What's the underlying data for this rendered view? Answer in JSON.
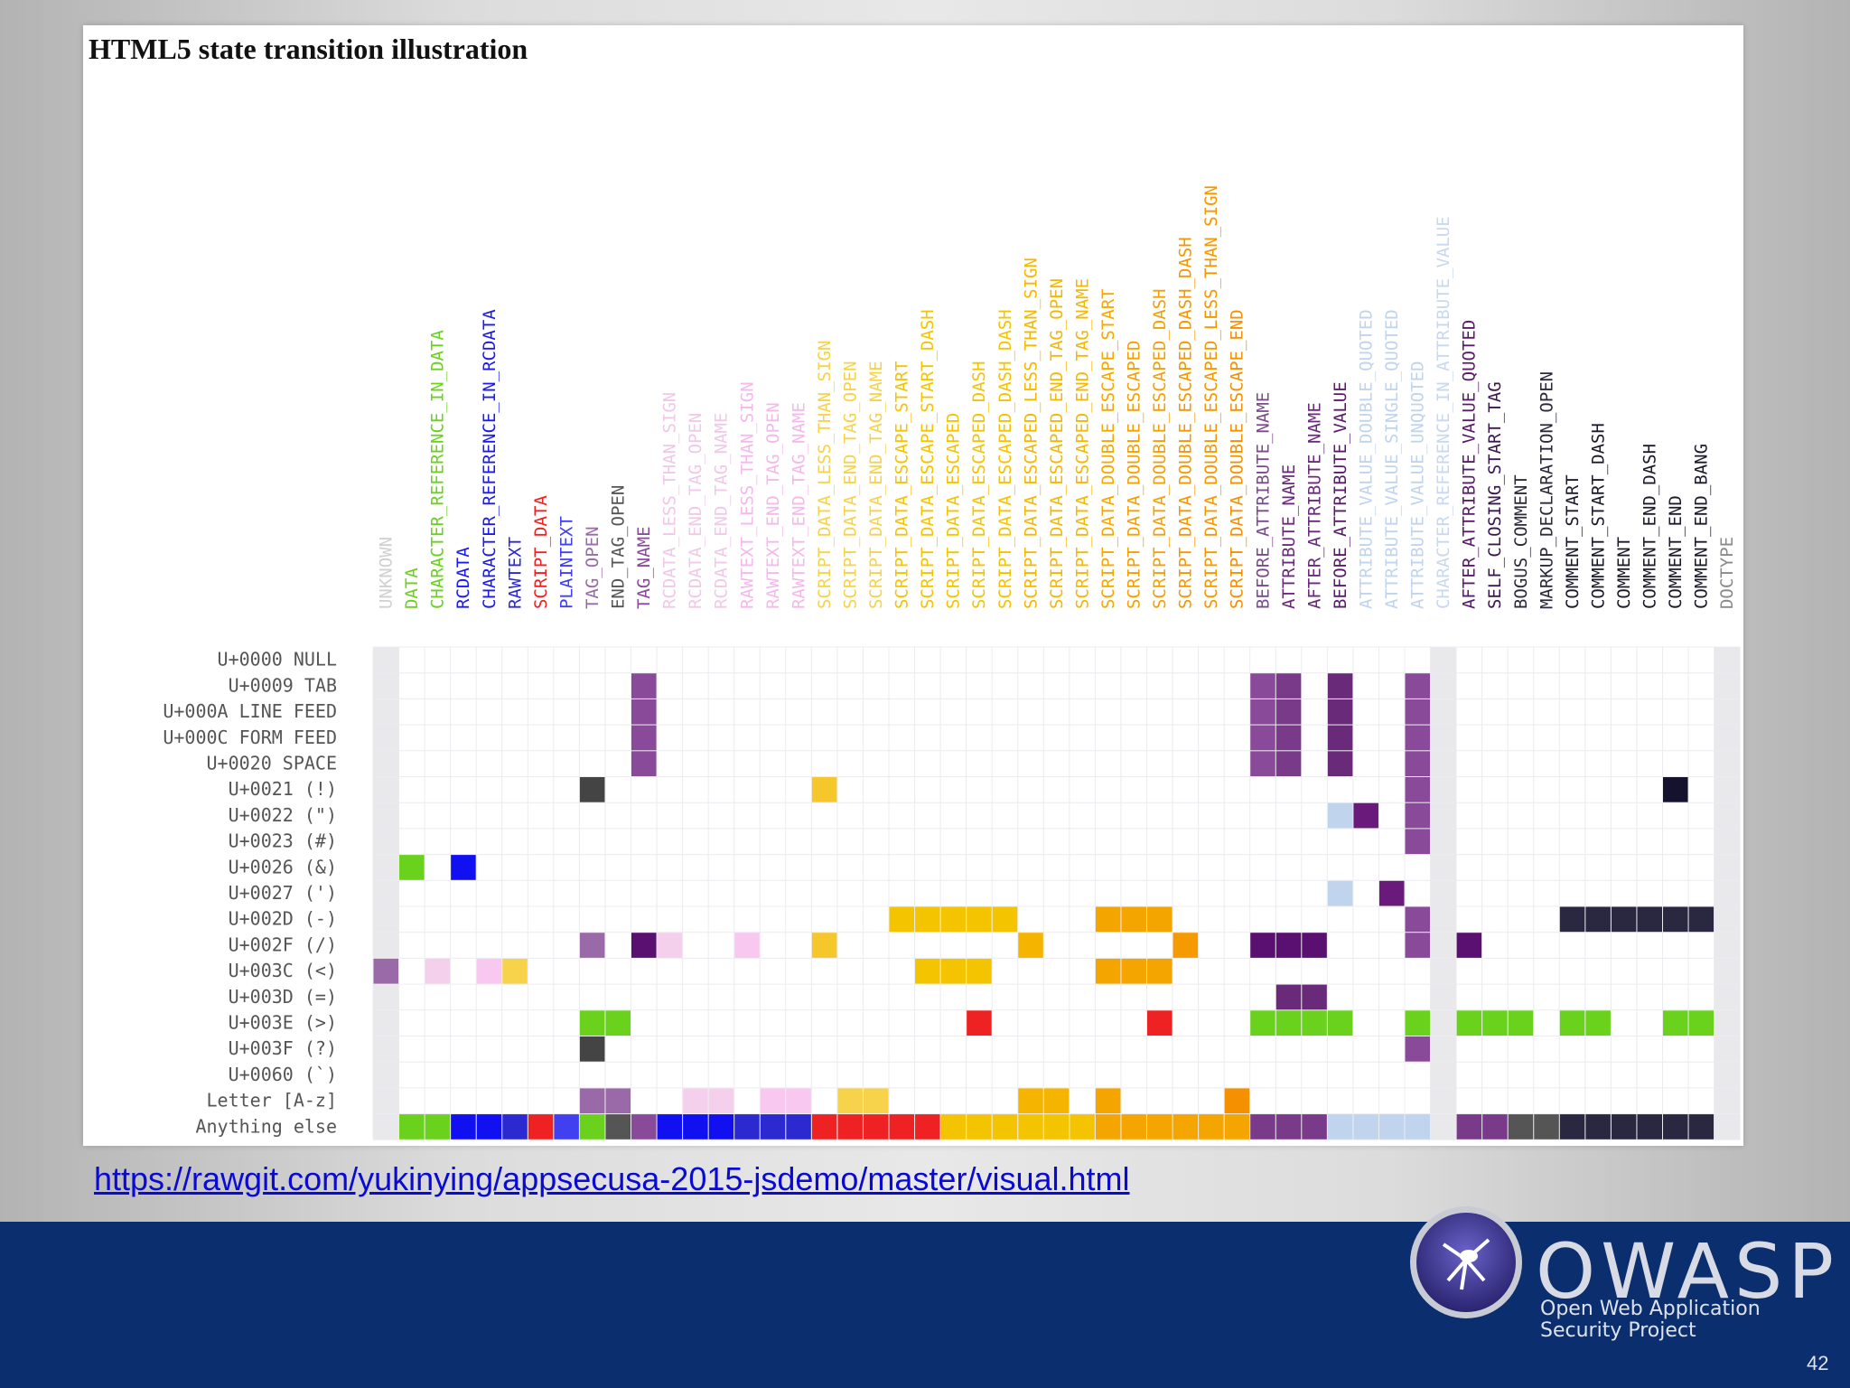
{
  "slide": {
    "title": "HTML5 state transition illustration",
    "url": "https://rawgit.com/yukinying/appsecusa-2015-jsdemo/master/visual.html",
    "logo_name": "OWASP",
    "logo_tagline_1": "Open Web Application",
    "logo_tagline_2": "Security Project",
    "page_number": "42",
    "colors": {
      "footer": "#0b2e6e",
      "link": "#0a0ad6"
    }
  },
  "chart_data": {
    "type": "heatmap",
    "title": "HTML5 state transition illustration",
    "columns": [
      {
        "name": "UNKNOWN",
        "color": "#d0d0d0"
      },
      {
        "name": "DATA",
        "color": "#6ad11d"
      },
      {
        "name": "CHARACTER_REFERENCE_IN_DATA",
        "color": "#6ad11d"
      },
      {
        "name": "RCDATA",
        "color": "#1a1af0"
      },
      {
        "name": "CHARACTER_REFERENCE_IN_RCDATA",
        "color": "#1a1af0"
      },
      {
        "name": "RAWTEXT",
        "color": "#2a2ad0"
      },
      {
        "name": "SCRIPT_DATA",
        "color": "#ee2222"
      },
      {
        "name": "PLAINTEXT",
        "color": "#4040f0"
      },
      {
        "name": "TAG_OPEN",
        "color": "#9a6aa8"
      },
      {
        "name": "END_TAG_OPEN",
        "color": "#555555"
      },
      {
        "name": "TAG_NAME",
        "color": "#8a4a9a"
      },
      {
        "name": "RCDATA_LESS_THAN_SIGN",
        "color": "#f0c8e8"
      },
      {
        "name": "RCDATA_END_TAG_OPEN",
        "color": "#f0c8e8"
      },
      {
        "name": "RCDATA_END_TAG_NAME",
        "color": "#f0c8e8"
      },
      {
        "name": "RAWTEXT_LESS_THAN_SIGN",
        "color": "#f4b8ec"
      },
      {
        "name": "RAWTEXT_END_TAG_OPEN",
        "color": "#f4b8ec"
      },
      {
        "name": "RAWTEXT_END_TAG_NAME",
        "color": "#f4b8ec"
      },
      {
        "name": "SCRIPT_DATA_LESS_THAN_SIGN",
        "color": "#f6d34a"
      },
      {
        "name": "SCRIPT_DATA_END_TAG_OPEN",
        "color": "#f6d34a"
      },
      {
        "name": "SCRIPT_DATA_END_TAG_NAME",
        "color": "#f6d34a"
      },
      {
        "name": "SCRIPT_DATA_ESCAPE_START",
        "color": "#f4c400"
      },
      {
        "name": "SCRIPT_DATA_ESCAPE_START_DASH",
        "color": "#f4c400"
      },
      {
        "name": "SCRIPT_DATA_ESCAPED",
        "color": "#f4c400"
      },
      {
        "name": "SCRIPT_DATA_ESCAPED_DASH",
        "color": "#f4c400"
      },
      {
        "name": "SCRIPT_DATA_ESCAPED_DASH_DASH",
        "color": "#f4c400"
      },
      {
        "name": "SCRIPT_DATA_ESCAPED_LESS_THAN_SIGN",
        "color": "#f5b800"
      },
      {
        "name": "SCRIPT_DATA_ESCAPED_END_TAG_OPEN",
        "color": "#f5b800"
      },
      {
        "name": "SCRIPT_DATA_ESCAPED_END_TAG_NAME",
        "color": "#f5b800"
      },
      {
        "name": "SCRIPT_DATA_DOUBLE_ESCAPE_START",
        "color": "#f5a800"
      },
      {
        "name": "SCRIPT_DATA_DOUBLE_ESCAPED",
        "color": "#f5a000"
      },
      {
        "name": "SCRIPT_DATA_DOUBLE_ESCAPED_DASH",
        "color": "#f5a000"
      },
      {
        "name": "SCRIPT_DATA_DOUBLE_ESCAPED_DASH_DASH",
        "color": "#f59800"
      },
      {
        "name": "SCRIPT_DATA_DOUBLE_ESCAPED_LESS_THAN_SIGN",
        "color": "#f59800"
      },
      {
        "name": "SCRIPT_DATA_DOUBLE_ESCAPE_END",
        "color": "#f59000"
      },
      {
        "name": "BEFORE_ATTRIBUTE_NAME",
        "color": "#7a4a8a"
      },
      {
        "name": "ATTRIBUTE_NAME",
        "color": "#6a2a7a"
      },
      {
        "name": "AFTER_ATTRIBUTE_NAME",
        "color": "#6a2a7a"
      },
      {
        "name": "BEFORE_ATTRIBUTE_VALUE",
        "color": "#5a1a6a"
      },
      {
        "name": "ATTRIBUTE_VALUE_DOUBLE_QUOTED",
        "color": "#c0d4ee"
      },
      {
        "name": "ATTRIBUTE_VALUE_SINGLE_QUOTED",
        "color": "#c0d4ee"
      },
      {
        "name": "ATTRIBUTE_VALUE_UNQUOTED",
        "color": "#c0d4ee"
      },
      {
        "name": "CHARACTER_REFERENCE_IN_ATTRIBUTE_VALUE",
        "color": "#c8d8f0"
      },
      {
        "name": "AFTER_ATTRIBUTE_VALUE_QUOTED",
        "color": "#5a1a6a"
      },
      {
        "name": "SELF_CLOSING_START_TAG",
        "color": "#3a1a4a"
      },
      {
        "name": "BOGUS_COMMENT",
        "color": "#2a2a3a"
      },
      {
        "name": "MARKUP_DECLARATION_OPEN",
        "color": "#2a2a3a"
      },
      {
        "name": "COMMENT_START",
        "color": "#1a1a2a"
      },
      {
        "name": "COMMENT_START_DASH",
        "color": "#1a1a2a"
      },
      {
        "name": "COMMENT",
        "color": "#1a1a2a"
      },
      {
        "name": "COMMENT_END_DASH",
        "color": "#1a1a2a"
      },
      {
        "name": "COMMENT_END",
        "color": "#1a1a2a"
      },
      {
        "name": "COMMENT_END_BANG",
        "color": "#1a1a2a"
      },
      {
        "name": "DOCTYPE",
        "color": "#8a8a8a"
      }
    ],
    "rows": [
      "U+0000 NULL",
      "U+0009 TAB",
      "U+000A LINE FEED",
      "U+000C FORM FEED",
      "U+0020 SPACE",
      "U+0021 (!)",
      "U+0022 (\")",
      "U+0023 (#)",
      "U+0026 (&)",
      "U+0027 (')",
      "U+002D (-)",
      "U+002F (/)",
      "U+003C (<)",
      "U+003D (=)",
      "U+003E (>)",
      "U+003F (?)",
      "U+0060 (`)",
      "Letter [A-z]",
      "Anything else"
    ],
    "highlighted_columns": [
      0,
      41,
      52
    ],
    "cells": [
      [
        1,
        10,
        "#8a4a9a"
      ],
      [
        2,
        10,
        "#8a4a9a"
      ],
      [
        3,
        10,
        "#8a4a9a"
      ],
      [
        4,
        10,
        "#8a4a9a"
      ],
      [
        1,
        34,
        "#8a4a9a"
      ],
      [
        2,
        34,
        "#8a4a9a"
      ],
      [
        3,
        34,
        "#8a4a9a"
      ],
      [
        4,
        34,
        "#8a4a9a"
      ],
      [
        1,
        35,
        "#7a3a8a"
      ],
      [
        2,
        35,
        "#7a3a8a"
      ],
      [
        3,
        35,
        "#7a3a8a"
      ],
      [
        4,
        35,
        "#7a3a8a"
      ],
      [
        1,
        37,
        "#6a2a7a"
      ],
      [
        2,
        37,
        "#6a2a7a"
      ],
      [
        3,
        37,
        "#6a2a7a"
      ],
      [
        4,
        37,
        "#6a2a7a"
      ],
      [
        1,
        40,
        "#8a4a9a"
      ],
      [
        2,
        40,
        "#8a4a9a"
      ],
      [
        3,
        40,
        "#8a4a9a"
      ],
      [
        4,
        40,
        "#8a4a9a"
      ],
      [
        5,
        8,
        "#444444"
      ],
      [
        5,
        17,
        "#f6c72a"
      ],
      [
        5,
        40,
        "#8a4a9a"
      ],
      [
        5,
        50,
        "#15122e"
      ],
      [
        6,
        37,
        "#c0d4ee"
      ],
      [
        6,
        38,
        "#6a1a7a"
      ],
      [
        6,
        40,
        "#8a4a9a"
      ],
      [
        7,
        40,
        "#8a4a9a"
      ],
      [
        8,
        1,
        "#6ad11d"
      ],
      [
        8,
        3,
        "#1010f0"
      ],
      [
        9,
        37,
        "#c0d4ee"
      ],
      [
        9,
        39,
        "#6a1a7a"
      ],
      [
        10,
        20,
        "#f4c400"
      ],
      [
        10,
        21,
        "#f4c400"
      ],
      [
        10,
        22,
        "#f4c400"
      ],
      [
        10,
        23,
        "#f4c400"
      ],
      [
        10,
        24,
        "#f4c400"
      ],
      [
        10,
        28,
        "#f5a500"
      ],
      [
        10,
        29,
        "#f5a500"
      ],
      [
        10,
        30,
        "#f5a500"
      ],
      [
        10,
        40,
        "#8a4a9a"
      ],
      [
        10,
        46,
        "#2a2840"
      ],
      [
        10,
        47,
        "#2a2840"
      ],
      [
        10,
        48,
        "#2a2840"
      ],
      [
        10,
        49,
        "#2a2840"
      ],
      [
        10,
        50,
        "#2a2840"
      ],
      [
        10,
        51,
        "#2a2840"
      ],
      [
        11,
        8,
        "#9a6aa8"
      ],
      [
        11,
        10,
        "#5a1070"
      ],
      [
        11,
        11,
        "#f5d0ec"
      ],
      [
        11,
        14,
        "#f8c8f0"
      ],
      [
        11,
        17,
        "#f6c72a"
      ],
      [
        11,
        25,
        "#f5b400"
      ],
      [
        11,
        31,
        "#f59a00"
      ],
      [
        11,
        34,
        "#5a1070"
      ],
      [
        11,
        35,
        "#5a1070"
      ],
      [
        11,
        36,
        "#5a1070"
      ],
      [
        11,
        40,
        "#8a4a9a"
      ],
      [
        11,
        42,
        "#5a1070"
      ],
      [
        12,
        0,
        "#9a6aa8"
      ],
      [
        12,
        2,
        "#f5d0ec"
      ],
      [
        12,
        4,
        "#f8c8f0"
      ],
      [
        12,
        5,
        "#f6d34a"
      ],
      [
        12,
        21,
        "#f4c400"
      ],
      [
        12,
        22,
        "#f4c400"
      ],
      [
        12,
        23,
        "#f4c400"
      ],
      [
        12,
        28,
        "#f5a500"
      ],
      [
        12,
        29,
        "#f5a500"
      ],
      [
        12,
        30,
        "#f5a500"
      ],
      [
        13,
        35,
        "#6a2a7a"
      ],
      [
        13,
        36,
        "#6a2a7a"
      ],
      [
        14,
        8,
        "#6ad11d"
      ],
      [
        14,
        9,
        "#6ad11d"
      ],
      [
        14,
        23,
        "#ee2222"
      ],
      [
        14,
        30,
        "#ee2222"
      ],
      [
        14,
        34,
        "#6ad11d"
      ],
      [
        14,
        35,
        "#6ad11d"
      ],
      [
        14,
        36,
        "#6ad11d"
      ],
      [
        14,
        37,
        "#6ad11d"
      ],
      [
        14,
        40,
        "#6ad11d"
      ],
      [
        14,
        42,
        "#6ad11d"
      ],
      [
        14,
        43,
        "#6ad11d"
      ],
      [
        14,
        44,
        "#6ad11d"
      ],
      [
        14,
        46,
        "#6ad11d"
      ],
      [
        14,
        47,
        "#6ad11d"
      ],
      [
        14,
        50,
        "#6ad11d"
      ],
      [
        14,
        51,
        "#6ad11d"
      ],
      [
        15,
        8,
        "#444444"
      ],
      [
        15,
        40,
        "#8a4a9a"
      ],
      [
        17,
        8,
        "#9a6aa8"
      ],
      [
        17,
        9,
        "#9a6aa8"
      ],
      [
        17,
        12,
        "#f5d0ec"
      ],
      [
        17,
        13,
        "#f5d0ec"
      ],
      [
        17,
        15,
        "#f8c8f0"
      ],
      [
        17,
        16,
        "#f8c8f0"
      ],
      [
        17,
        18,
        "#f6d34a"
      ],
      [
        17,
        19,
        "#f6d34a"
      ],
      [
        17,
        25,
        "#f5b400"
      ],
      [
        17,
        26,
        "#f5b400"
      ],
      [
        17,
        28,
        "#f5a500"
      ],
      [
        17,
        33,
        "#f59000"
      ],
      [
        18,
        1,
        "#6ad11d"
      ],
      [
        18,
        2,
        "#6ad11d"
      ],
      [
        18,
        3,
        "#1010f0"
      ],
      [
        18,
        4,
        "#1010f0"
      ],
      [
        18,
        5,
        "#2a2ad0"
      ],
      [
        18,
        6,
        "#ee2222"
      ],
      [
        18,
        7,
        "#4040f0"
      ],
      [
        18,
        8,
        "#6ad11d"
      ],
      [
        18,
        9,
        "#555555"
      ],
      [
        18,
        10,
        "#8a4a9a"
      ],
      [
        18,
        11,
        "#1010f0"
      ],
      [
        18,
        12,
        "#1010f0"
      ],
      [
        18,
        13,
        "#1010f0"
      ],
      [
        18,
        14,
        "#2a2ad0"
      ],
      [
        18,
        15,
        "#2a2ad0"
      ],
      [
        18,
        16,
        "#2a2ad0"
      ],
      [
        18,
        17,
        "#ee2222"
      ],
      [
        18,
        18,
        "#ee2222"
      ],
      [
        18,
        19,
        "#ee2222"
      ],
      [
        18,
        20,
        "#ee2222"
      ],
      [
        18,
        21,
        "#ee2222"
      ],
      [
        18,
        22,
        "#f4c400"
      ],
      [
        18,
        23,
        "#f4c400"
      ],
      [
        18,
        24,
        "#f4c400"
      ],
      [
        18,
        25,
        "#f4c400"
      ],
      [
        18,
        26,
        "#f4c400"
      ],
      [
        18,
        27,
        "#f4c400"
      ],
      [
        18,
        28,
        "#f5a500"
      ],
      [
        18,
        29,
        "#f5a500"
      ],
      [
        18,
        30,
        "#f5a500"
      ],
      [
        18,
        31,
        "#f5a500"
      ],
      [
        18,
        32,
        "#f5a500"
      ],
      [
        18,
        33,
        "#f5a500"
      ],
      [
        18,
        34,
        "#7a3a8a"
      ],
      [
        18,
        35,
        "#7a3a8a"
      ],
      [
        18,
        36,
        "#7a3a8a"
      ],
      [
        18,
        37,
        "#c0d4ee"
      ],
      [
        18,
        38,
        "#c0d4ee"
      ],
      [
        18,
        39,
        "#c0d4ee"
      ],
      [
        18,
        40,
        "#c0d4ee"
      ],
      [
        18,
        42,
        "#7a3a8a"
      ],
      [
        18,
        43,
        "#7a3a8a"
      ],
      [
        18,
        44,
        "#555555"
      ],
      [
        18,
        45,
        "#555555"
      ],
      [
        18,
        46,
        "#2a2840"
      ],
      [
        18,
        47,
        "#2a2840"
      ],
      [
        18,
        48,
        "#2a2840"
      ],
      [
        18,
        49,
        "#2a2840"
      ],
      [
        18,
        50,
        "#2a2840"
      ],
      [
        18,
        51,
        "#2a2840"
      ]
    ]
  }
}
